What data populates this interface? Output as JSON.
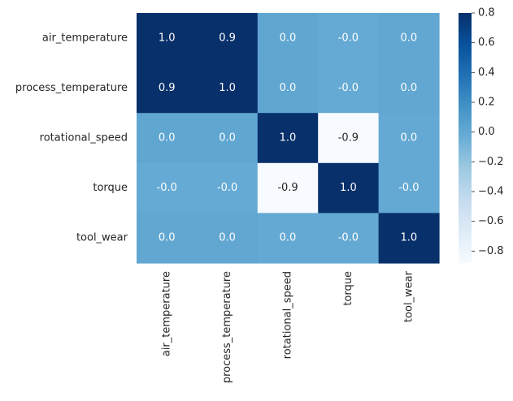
{
  "chart_data": {
    "type": "heatmap",
    "title": "",
    "xlabel": "",
    "ylabel": "",
    "row_labels": [
      "air_temperature",
      "process_temperature",
      "rotational_speed",
      "torque",
      "tool_wear"
    ],
    "col_labels": [
      "air_temperature",
      "process_temperature",
      "rotational_speed",
      "torque",
      "tool_wear"
    ],
    "values": [
      [
        1.0,
        0.88,
        0.02,
        -0.01,
        0.01
      ],
      [
        0.88,
        1.0,
        0.02,
        -0.01,
        0.01
      ],
      [
        0.02,
        0.02,
        1.0,
        -0.88,
        0.0
      ],
      [
        -0.01,
        -0.01,
        -0.88,
        1.0,
        -0.0
      ],
      [
        0.01,
        0.01,
        0.0,
        -0.0,
        1.0
      ]
    ],
    "cell_labels": [
      [
        "1.0",
        "0.9",
        "0.0",
        "-0.0",
        "0.0"
      ],
      [
        "0.9",
        "1.0",
        "0.0",
        "-0.0",
        "0.0"
      ],
      [
        "0.0",
        "0.0",
        "1.0",
        "-0.9",
        "0.0"
      ],
      [
        "-0.0",
        "-0.0",
        "-0.9",
        "1.0",
        "-0.0"
      ],
      [
        "0.0",
        "0.0",
        "0.0",
        "-0.0",
        "1.0"
      ]
    ],
    "colormap": "Blues",
    "colorbar": {
      "vmin": -0.88,
      "vmax": 0.8,
      "ticks": [
        0.8,
        0.6,
        0.4,
        0.2,
        0.0,
        -0.2,
        -0.4,
        -0.6,
        -0.8
      ],
      "tick_labels": [
        "0.8",
        "0.6",
        "0.4",
        "0.2",
        "0.0",
        "−0.2",
        "−0.4",
        "−0.6",
        "−0.8"
      ]
    },
    "grid": false
  }
}
